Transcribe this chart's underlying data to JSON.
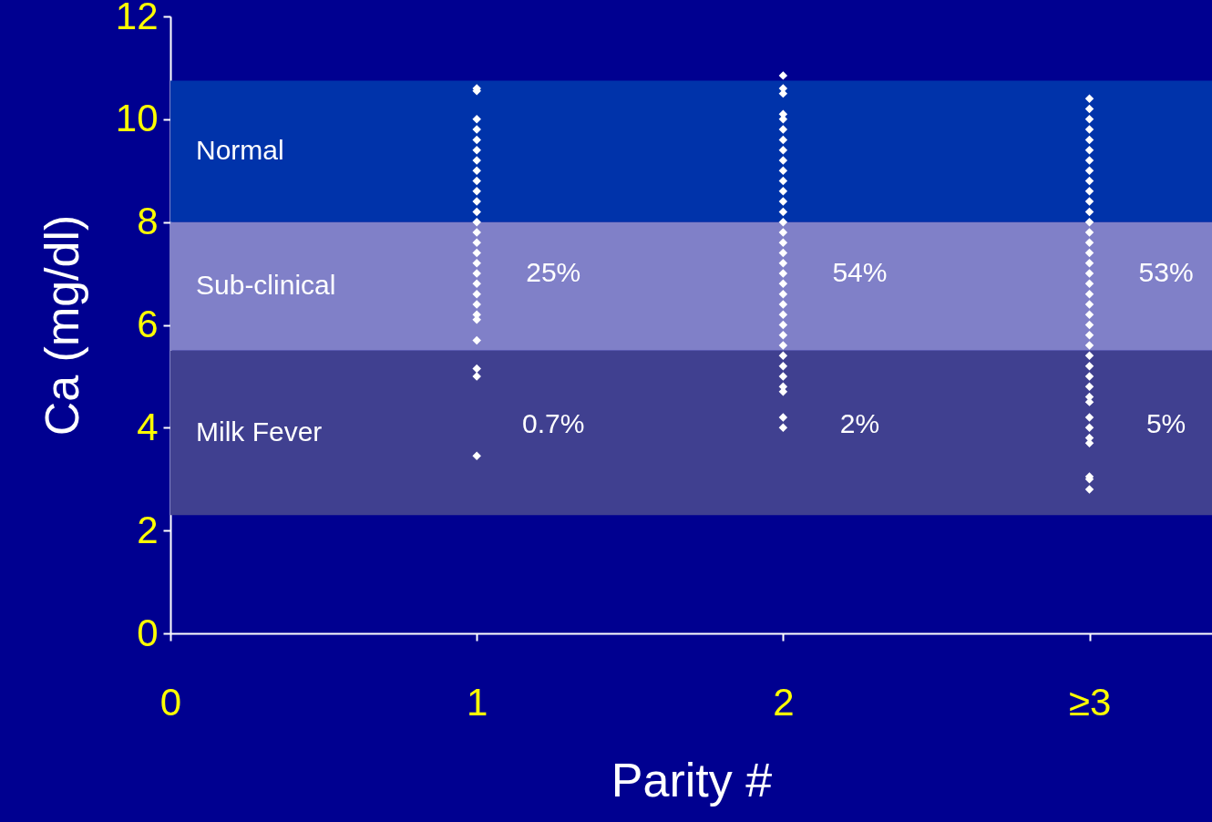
{
  "chart_data": {
    "type": "scatter",
    "xlabel": "Parity #",
    "ylabel": "Ca (mg/dl)",
    "xlim": [
      0,
      3.4
    ],
    "xticks": [
      0,
      1,
      2,
      {
        "value": 3,
        "label": "≥3"
      }
    ],
    "ylim": [
      0,
      12
    ],
    "yticks": [
      0,
      2,
      4,
      6,
      8,
      10,
      12
    ],
    "grid": false,
    "marker": "diamond",
    "series": [
      {
        "color": "#ffffff",
        "x": [
          1,
          1,
          1,
          1,
          1,
          1,
          1,
          1,
          1,
          1,
          1,
          1,
          1,
          1,
          1,
          1,
          1,
          1,
          1,
          1,
          1,
          1,
          1,
          1,
          1,
          1,
          1,
          2,
          2,
          2,
          2,
          2,
          2,
          2,
          2,
          2,
          2,
          2,
          2,
          2,
          2,
          2,
          2,
          2,
          2,
          2,
          2,
          2,
          2,
          2,
          2,
          2,
          2,
          2,
          2,
          2,
          2,
          2,
          2,
          2,
          2,
          3,
          3,
          3,
          3,
          3,
          3,
          3,
          3,
          3,
          3,
          3,
          3,
          3,
          3,
          3,
          3,
          3,
          3,
          3,
          3,
          3,
          3,
          3,
          3,
          3,
          3,
          3,
          3,
          3,
          3,
          3,
          3,
          3,
          3,
          3,
          3,
          3,
          3
        ],
        "values": [
          10.6,
          10.55,
          10.0,
          9.8,
          9.6,
          9.4,
          9.2,
          9.0,
          8.8,
          8.6,
          8.4,
          8.2,
          8.0,
          7.8,
          7.6,
          7.4,
          7.2,
          7.0,
          6.8,
          6.6,
          6.4,
          6.2,
          6.1,
          5.7,
          5.15,
          5.0,
          3.45,
          10.85,
          10.6,
          10.5,
          10.1,
          10.0,
          9.8,
          9.6,
          9.4,
          9.2,
          9.0,
          8.8,
          8.6,
          8.4,
          8.2,
          8.0,
          7.8,
          7.6,
          7.4,
          7.2,
          7.0,
          6.8,
          6.6,
          6.4,
          6.2,
          6.0,
          5.8,
          5.6,
          5.4,
          5.2,
          5.0,
          4.8,
          4.7,
          4.2,
          4.0,
          10.4,
          10.2,
          10.0,
          9.8,
          9.6,
          9.4,
          9.2,
          9.0,
          8.8,
          8.6,
          8.4,
          8.2,
          8.0,
          7.8,
          7.6,
          7.4,
          7.2,
          7.0,
          6.8,
          6.6,
          6.4,
          6.2,
          6.0,
          5.8,
          5.6,
          5.4,
          5.2,
          5.0,
          4.8,
          4.6,
          4.5,
          4.2,
          4.0,
          3.8,
          3.7,
          3.05,
          3.0,
          2.8
        ]
      }
    ],
    "bands": [
      {
        "axis": "y",
        "from": 8,
        "to": 10.75,
        "label": "Normal",
        "color": "#0033aa"
      },
      {
        "axis": "y",
        "from": 5.5,
        "to": 8,
        "label": "Sub-clinical",
        "color": "#8080c8"
      },
      {
        "axis": "y",
        "from": 2.3,
        "to": 5.5,
        "label": "Milk Fever",
        "color": "#404090"
      }
    ],
    "annotations": [
      "25%",
      "54%",
      "53%",
      "0.7%",
      "2%",
      "5%"
    ]
  }
}
